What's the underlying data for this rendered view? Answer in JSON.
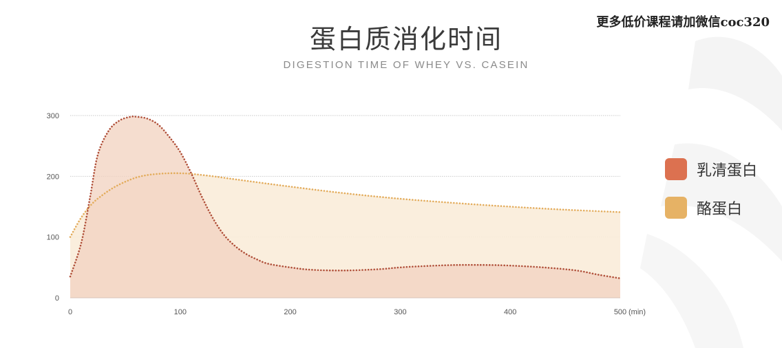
{
  "watermark": "更多低价课程请加微信coc320",
  "colors": {
    "whey_line": "#b0503a",
    "whey_fill": "#f2d3c2",
    "whey_fill_overlap": "#f3d6c6",
    "casein_line": "#e3ac5c",
    "casein_fill": "#f9ecd9",
    "whey_swatch": "#dc7150",
    "casein_swatch": "#e6b265",
    "grid": "#c9c9c9",
    "axis_text": "#555555"
  },
  "chart_data": {
    "type": "area",
    "title": "蛋白质消化时间",
    "subtitle": "DIGESTION TIME OF WHEY VS. CASEIN",
    "xlabel": "",
    "ylabel": "",
    "x_unit": "(min)",
    "xlim": [
      0,
      500
    ],
    "ylim": [
      0,
      300
    ],
    "x_ticks": [
      0,
      100,
      200,
      300,
      400,
      500
    ],
    "y_ticks": [
      0,
      100,
      200,
      300
    ],
    "grid": "horizontal",
    "legend_position": "right",
    "series": [
      {
        "name": "乳清蛋白",
        "x": [
          0,
          10,
          18,
          25,
          35,
          45,
          55,
          60,
          70,
          80,
          90,
          100,
          110,
          120,
          130,
          140,
          150,
          160,
          170,
          180,
          200,
          220,
          250,
          280,
          300,
          320,
          350,
          380,
          400,
          430,
          460,
          480,
          500
        ],
        "values": [
          35,
          90,
          165,
          235,
          275,
          292,
          298,
          298,
          295,
          285,
          265,
          240,
          205,
          165,
          130,
          103,
          85,
          72,
          63,
          56,
          50,
          46,
          45,
          47,
          50,
          52,
          54,
          54,
          53,
          50,
          45,
          38,
          32
        ]
      },
      {
        "name": "酪蛋白",
        "x": [
          0,
          10,
          20,
          30,
          40,
          50,
          60,
          70,
          80,
          90,
          100,
          110,
          130,
          150,
          200,
          250,
          300,
          350,
          400,
          450,
          500
        ],
        "values": [
          100,
          132,
          155,
          170,
          182,
          191,
          198,
          202,
          204,
          205,
          205,
          204,
          200,
          195,
          183,
          172,
          163,
          156,
          150,
          145,
          141
        ]
      }
    ]
  }
}
